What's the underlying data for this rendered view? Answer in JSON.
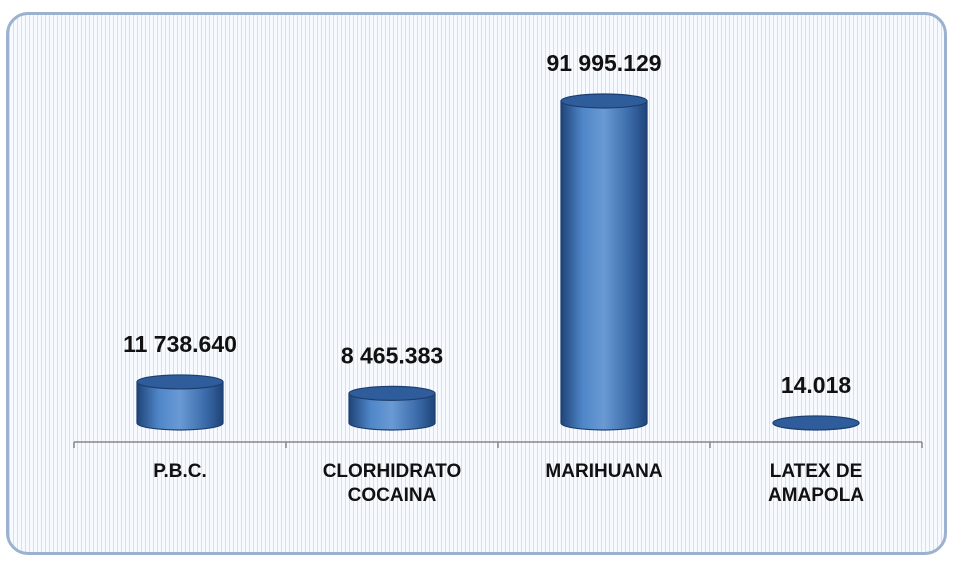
{
  "chart_data": {
    "type": "bar",
    "categories": [
      [
        "P.B.C."
      ],
      [
        "CLORHIDRATO",
        "COCAINA"
      ],
      [
        "MARIHUANA"
      ],
      [
        "LATEX DE",
        "AMAPOLA"
      ]
    ],
    "values": [
      11738.64,
      8465.383,
      91995.129,
      14.018
    ],
    "value_labels": [
      "11 738.640",
      "8 465.383",
      "91 995.129",
      "14.018"
    ],
    "ylim": [
      0,
      100000
    ],
    "grid": false,
    "legend": "none",
    "colors": {
      "bar_body": "#4a7fc1",
      "bar_dark": "#23487f",
      "bar_top": "#2f5d9b",
      "axis": "#888888"
    }
  }
}
